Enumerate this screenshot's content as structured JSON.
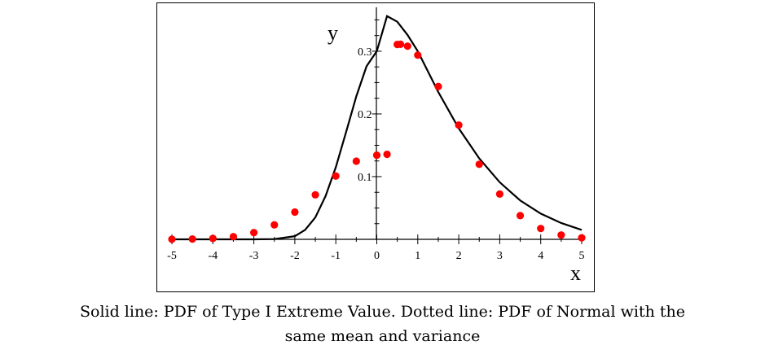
{
  "chart_data": {
    "type": "line",
    "xlabel": "x",
    "ylabel": "y",
    "xlim": [
      -5,
      5
    ],
    "ylim": [
      0,
      0.37
    ],
    "x_ticks": [
      -5,
      -4,
      -3,
      -2,
      -1,
      0,
      1,
      2,
      3,
      4,
      5
    ],
    "x_tick_labels": [
      "-5",
      "-4",
      "-3",
      "-2",
      "-1",
      "0",
      "1",
      "2",
      "3",
      "4",
      "5"
    ],
    "y_ticks": [
      0.1,
      0.2,
      0.3
    ],
    "y_tick_labels": [
      "0.1",
      "0.2",
      "0.3"
    ],
    "grid": false,
    "legend": "none",
    "series": [
      {
        "style": "solid",
        "color": "#000000",
        "x": [
          -5,
          -4,
          -3,
          -2.5,
          -2,
          -1.75,
          -1.5,
          -1.25,
          -1,
          -0.75,
          -0.5,
          -0.25,
          0,
          0.25,
          0.5,
          0.75,
          1,
          1.5,
          2,
          2.5,
          3,
          3.5,
          4,
          4.5,
          5
        ],
        "values": [
          0,
          0,
          0,
          0.0004,
          0.005,
          0.015,
          0.035,
          0.069,
          0.115,
          0.171,
          0.228,
          0.276,
          0.3,
          0.356,
          0.347,
          0.326,
          0.3,
          0.235,
          0.177,
          0.129,
          0.091,
          0.062,
          0.041,
          0.026,
          0.015
        ]
      },
      {
        "style": "dotted",
        "color": "#ff0000",
        "x": [
          -5,
          -4.5,
          -4,
          -3.5,
          -3,
          -2.5,
          -2,
          -1.5,
          -1,
          -0.5,
          0,
          0.25,
          0.5,
          0.577,
          0.75,
          1,
          1.5,
          2,
          2.5,
          3,
          3.5,
          4,
          4.5,
          5
        ],
        "values": [
          0.0001,
          0.0005,
          0.0015,
          0.0043,
          0.0107,
          0.0231,
          0.0435,
          0.071,
          0.1009,
          0.1247,
          0.1342,
          0.1356,
          0.3108,
          0.3111,
          0.3081,
          0.2938,
          0.2438,
          0.1822,
          0.1197,
          0.0722,
          0.0378,
          0.0173,
          0.0069,
          0.0024
        ]
      }
    ]
  },
  "caption": {
    "line1": "Solid line: PDF of Type I Extreme Value. Dotted line: PDF of Normal with the",
    "line2": "same mean and variance"
  }
}
